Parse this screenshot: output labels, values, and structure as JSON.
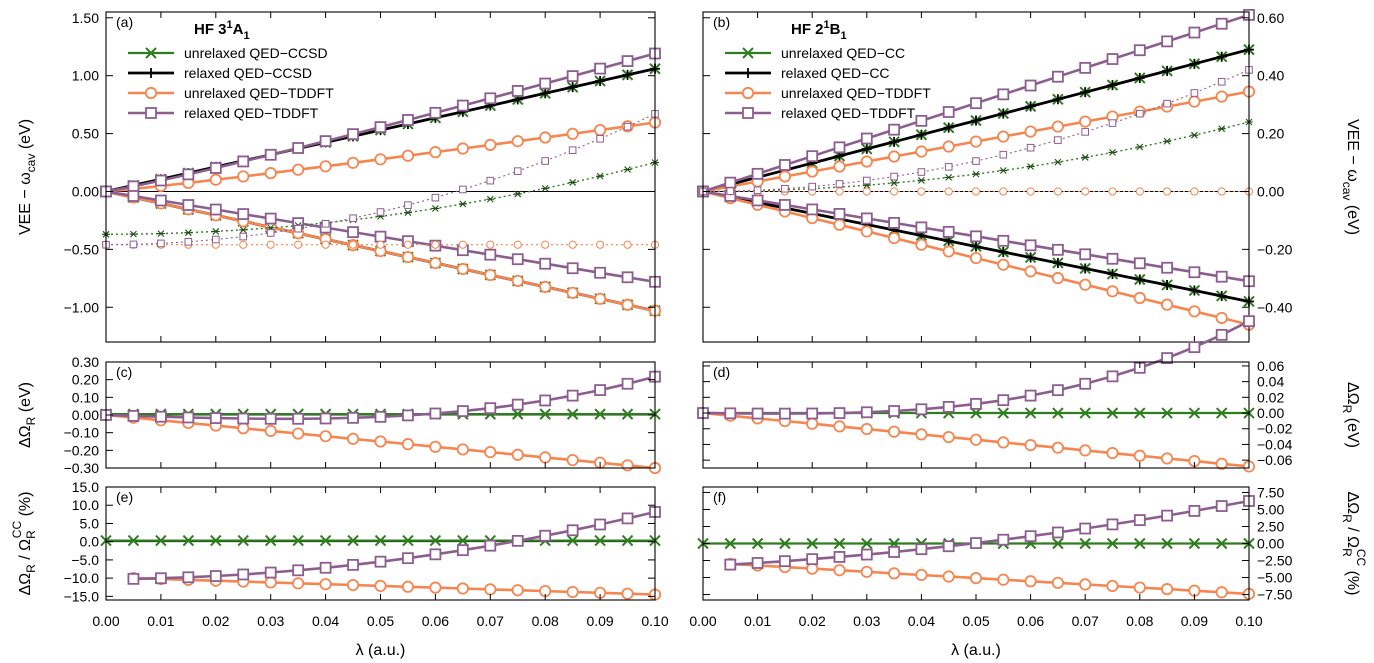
{
  "chart_data": [
    {
      "panel": "(a)",
      "type": "line",
      "title": "HF 3",
      "title_sup": "1",
      "title_base": "A",
      "title_sub": "1",
      "ylabel": "VEE − ωcav (eV)",
      "ylabel_main": "VEE − ω",
      "ylabel_sub": "cav",
      "ylabel_end": " (eV)",
      "xlim": [
        0,
        0.1
      ],
      "ylim": [
        -1.3,
        1.55
      ],
      "yticks": [
        -1.0,
        -0.5,
        0.0,
        0.5,
        1.0,
        1.5
      ],
      "ytick_labels": [
        "−1.00",
        "−0.50",
        "0.00",
        "0.50",
        "1.00",
        "1.50"
      ],
      "legend": [
        "unrelaxed QED−CCSD",
        "relaxed QED−CCSD",
        "unrelaxed QED−TDDFT",
        "relaxed QED−TDDFT"
      ],
      "series": [
        {
          "name": "unrelaxed QED−CCSD",
          "style": "cc_unrel",
          "formula": "lin",
          "params": [
            10.6,
            0
          ]
        },
        {
          "name": "",
          "style": "cc_unrel",
          "formula": "lin",
          "params": [
            -10.3,
            0
          ]
        },
        {
          "name": "relaxed QED−CCSD",
          "style": "cc_rel",
          "formula": "lin",
          "params": [
            10.6,
            0
          ]
        },
        {
          "name": "",
          "style": "cc_rel",
          "formula": "lin",
          "params": [
            -10.3,
            0
          ]
        },
        {
          "name": "unrelaxed QED−TDDFT",
          "style": "td_unrel",
          "formula": "pow",
          "params": [
            7.5,
            1.1
          ]
        },
        {
          "name": "",
          "style": "td_unrel",
          "formula": "lin",
          "params": [
            -10.3,
            0
          ]
        },
        {
          "name": "relaxed QED−TDDFT",
          "style": "td_rel",
          "formula": "pow",
          "params": [
            15.0,
            1.1
          ]
        },
        {
          "name": "",
          "style": "td_rel",
          "formula": "lin",
          "params": [
            -7.8,
            0
          ]
        },
        {
          "name": "",
          "style": "cc_dot",
          "formula": "quad",
          "params": [
            -0.37,
            62
          ]
        },
        {
          "name": "",
          "style": "td_dot_unrel",
          "formula": "const",
          "params": [
            -0.46
          ]
        },
        {
          "name": "",
          "style": "td_dot_rel",
          "formula": "quad",
          "params": [
            -0.46,
            113
          ]
        }
      ]
    },
    {
      "panel": "(b)",
      "type": "line",
      "title": "HF 2",
      "title_sup": "1",
      "title_base": "B",
      "title_sub": "1",
      "ylabel": "VEE − ωcav (eV)",
      "ylabel_main": "VEE − ω",
      "ylabel_sub": "cav",
      "ylabel_end": " (eV)",
      "xlim": [
        0,
        0.1
      ],
      "ylim": [
        -0.52,
        0.62
      ],
      "yticks": [
        -0.4,
        -0.2,
        0.0,
        0.2,
        0.4,
        0.6
      ],
      "ytick_labels": [
        "−0.40",
        "−0.20",
        "0.00",
        "0.20",
        "0.40",
        "0.60"
      ],
      "legend": [
        "unrelaxed QED−CC",
        "relaxed QED−CC",
        "unrelaxed QED−TDDFT",
        "relaxed QED−TDDFT"
      ],
      "series": [
        {
          "name": "unrelaxed QED−CC",
          "style": "cc_unrel",
          "formula": "lin",
          "params": [
            4.9,
            0
          ]
        },
        {
          "name": "",
          "style": "cc_unrel",
          "formula": "lin",
          "params": [
            -3.8,
            0
          ]
        },
        {
          "name": "relaxed QED−CC",
          "style": "cc_rel",
          "formula": "lin",
          "params": [
            4.9,
            0
          ]
        },
        {
          "name": "",
          "style": "cc_rel",
          "formula": "lin",
          "params": [
            -3.8,
            0
          ]
        },
        {
          "name": "unrelaxed QED−TDDFT",
          "style": "td_unrel",
          "formula": "pow",
          "params": [
            3.45,
            1.0
          ]
        },
        {
          "name": "",
          "style": "td_unrel",
          "formula": "pow",
          "params": [
            -4.6,
            1.0
          ]
        },
        {
          "name": "relaxed QED−TDDFT",
          "style": "td_rel",
          "formula": "pow",
          "params": [
            6.1,
            1.0
          ]
        },
        {
          "name": "",
          "style": "td_rel",
          "formula": "lin",
          "params": [
            -3.1,
            0
          ]
        },
        {
          "name": "",
          "style": "cc_dot",
          "formula": "quad",
          "params": [
            0,
            24
          ]
        },
        {
          "name": "",
          "style": "td_dot_unrel",
          "formula": "const",
          "params": [
            0
          ]
        },
        {
          "name": "",
          "style": "td_dot_rel",
          "formula": "quad",
          "params": [
            0,
            42
          ]
        }
      ]
    },
    {
      "panel": "(c)",
      "type": "line",
      "ylabel": "ΔΩR (eV)",
      "ylabel_main": "ΔΩ",
      "ylabel_sub": "R",
      "ylabel_end": " (eV)",
      "xlim": [
        0,
        0.1
      ],
      "ylim": [
        -0.3,
        0.3
      ],
      "yticks": [
        -0.3,
        -0.2,
        -0.1,
        0.0,
        0.1,
        0.2,
        0.3
      ],
      "ytick_labels": [
        "−0.30",
        "−0.20",
        "−0.10",
        "0.00",
        "0.10",
        "0.20",
        "0.30"
      ],
      "series": [
        {
          "name": "",
          "style": "cc_unrel",
          "formula": "const",
          "params": [
            0.005
          ]
        },
        {
          "name": "",
          "style": "td_unrel",
          "formula": "pow",
          "params": [
            -3.0,
            1.0
          ]
        },
        {
          "name": "",
          "style": "td_rel",
          "formula": "cubic",
          "params": [
            -1.0,
            0,
            317
          ]
        }
      ]
    },
    {
      "panel": "(d)",
      "type": "line",
      "ylabel": "ΔΩR (eV)",
      "ylabel_main": "ΔΩ",
      "ylabel_sub": "R",
      "ylabel_end": " (eV)",
      "xlim": [
        0,
        0.1
      ],
      "ylim": [
        -0.07,
        0.065
      ],
      "yticks": [
        -0.06,
        -0.04,
        -0.02,
        0.0,
        0.02,
        0.04,
        0.06
      ],
      "ytick_labels": [
        "−0.06",
        "−0.04",
        "−0.02",
        "0.00",
        "0.02",
        "0.04",
        "0.06"
      ],
      "series": [
        {
          "name": "",
          "style": "cc_unrel",
          "formula": "const",
          "params": [
            0.0
          ]
        },
        {
          "name": "",
          "style": "td_unrel",
          "formula": "pow",
          "params": [
            -0.68,
            1.0
          ]
        },
        {
          "name": "",
          "style": "td_rel",
          "formula": "cubic",
          "params": [
            -0.08,
            0,
            125
          ]
        }
      ]
    },
    {
      "panel": "(e)",
      "type": "line",
      "ylabel": "ΔΩR / ΩR CC (%)",
      "ylabel_main": "ΔΩ",
      "ylabel_sub": "R",
      "ylabel_mid": " / Ω",
      "ylabel_sub2": "R",
      "ylabel_sup2": "CC",
      "ylabel_end": " (%)",
      "xlim": [
        0,
        0.1
      ],
      "ylim": [
        -16,
        15
      ],
      "yticks": [
        -15,
        -10,
        -5,
        0,
        5,
        10,
        15
      ],
      "ytick_labels": [
        "−15.0",
        "−10.0",
        "−5.0",
        "0.0",
        "5.0",
        "10.0",
        "15.0"
      ],
      "series": [
        {
          "name": "",
          "style": "cc_unrel",
          "formula": "const",
          "params": [
            0.3
          ]
        },
        {
          "name": "",
          "style": "td_unrel",
          "formula": "lin_off",
          "params": [
            -10.0,
            -47.4
          ]
        },
        {
          "name": "",
          "style": "td_rel",
          "formula": "quad_off",
          "params": [
            -10.2,
            25,
            1770
          ]
        }
      ]
    },
    {
      "panel": "(f)",
      "type": "line",
      "ylabel": "ΔΩR / ΩR CC (%)",
      "ylabel_main": "ΔΩ",
      "ylabel_sub": "R",
      "ylabel_mid": " / Ω",
      "ylabel_sub2": "R",
      "ylabel_sup2": "CC",
      "ylabel_end": " (%)",
      "xlim": [
        0,
        0.1
      ],
      "ylim": [
        -8.3,
        8.3
      ],
      "yticks": [
        -7.5,
        -5.0,
        -2.5,
        0,
        2.5,
        5.0,
        7.5
      ],
      "ytick_labels": [
        "−7.50",
        "−5.00",
        "−2.50",
        "0.00",
        "2.50",
        "5.00",
        "7.50"
      ],
      "series": [
        {
          "name": "",
          "style": "cc_unrel",
          "formula": "const",
          "params": [
            0.0
          ]
        },
        {
          "name": "",
          "style": "td_unrel",
          "formula": "lin_off",
          "params": [
            -3.0,
            -46.3
          ]
        },
        {
          "name": "",
          "style": "td_rel",
          "formula": "quad_off",
          "params": [
            -3.1,
            45,
            562
          ]
        }
      ]
    }
  ],
  "xaxis": {
    "label": "λ (a.u.)",
    "ticks": [
      0.0,
      0.01,
      0.02,
      0.03,
      0.04,
      0.05,
      0.06,
      0.07,
      0.08,
      0.09,
      0.1
    ],
    "tick_labels": [
      "0.00",
      "0.01",
      "0.02",
      "0.03",
      "0.04",
      "0.05",
      "0.06",
      "0.07",
      "0.08",
      "0.09",
      "0.10"
    ]
  },
  "colors": {
    "cc_unrel": "#2e7d1e",
    "cc_rel": "#000000",
    "td_unrel": "#f5864f",
    "td_rel": "#8c5e8f",
    "zero_line": "#000000"
  }
}
